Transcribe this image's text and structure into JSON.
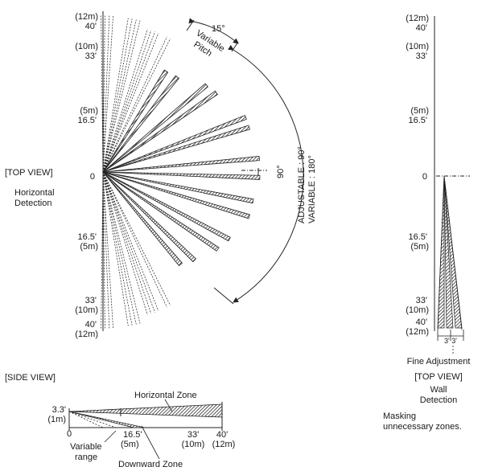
{
  "top_view_left": {
    "labels_upper": [
      {
        "m": "(12m)",
        "ft": "40'"
      },
      {
        "m": "(10m)",
        "ft": "33'"
      },
      {
        "m": "(5m)",
        "ft": "16.5'"
      }
    ],
    "zero": "0",
    "labels_lower": [
      {
        "ft": "16.5'",
        "m": "(5m)"
      },
      {
        "ft": "33'",
        "m": "(10m)"
      },
      {
        "ft": "40'",
        "m": "(12m)"
      }
    ],
    "view_title": "[TOP VIEW]",
    "caption_line1": "Horizontal",
    "caption_line2": "Detection",
    "pitch_angle": "15°",
    "pitch_label_line1": "Variable",
    "pitch_label_line2": "Pitch",
    "right_angle": "90°",
    "adjustable": "ADJUSTABLE : 90°",
    "variable": "VARIABLE : 180°"
  },
  "side_view": {
    "title": "[SIDE VIEW]",
    "height_ft": "3.3'",
    "height_m": "(1m)",
    "horizontal_zone": "Horizontal Zone",
    "downward_zone": "Downward Zone",
    "ticks": [
      {
        "ft": "0",
        "m": ""
      },
      {
        "ft": "16.5'",
        "m": "(5m)"
      },
      {
        "ft": "33'",
        "m": "(10m)"
      },
      {
        "ft": "40'",
        "m": "(12m)"
      }
    ],
    "variable_line1": "Variable",
    "variable_line2": "range"
  },
  "top_view_right": {
    "labels_upper": [
      {
        "m": "(12m)",
        "ft": "40'"
      },
      {
        "m": "(10m)",
        "ft": "33'"
      },
      {
        "m": "(5m)",
        "ft": "16.5'"
      }
    ],
    "zero": "0",
    "labels_lower": [
      {
        "ft": "16.5'",
        "m": "(5m)"
      },
      {
        "ft": "33'",
        "m": "(10m)"
      },
      {
        "ft": "40'",
        "m": "(12m)"
      }
    ],
    "width_label": "3' 3'",
    "fine_adjustment": "Fine Adjustment",
    "view_title": "[TOP VIEW]",
    "caption_line1": "Wall",
    "caption_line2": "Detection",
    "masking_line1": "Masking",
    "masking_line2": "unnecessary zones."
  }
}
